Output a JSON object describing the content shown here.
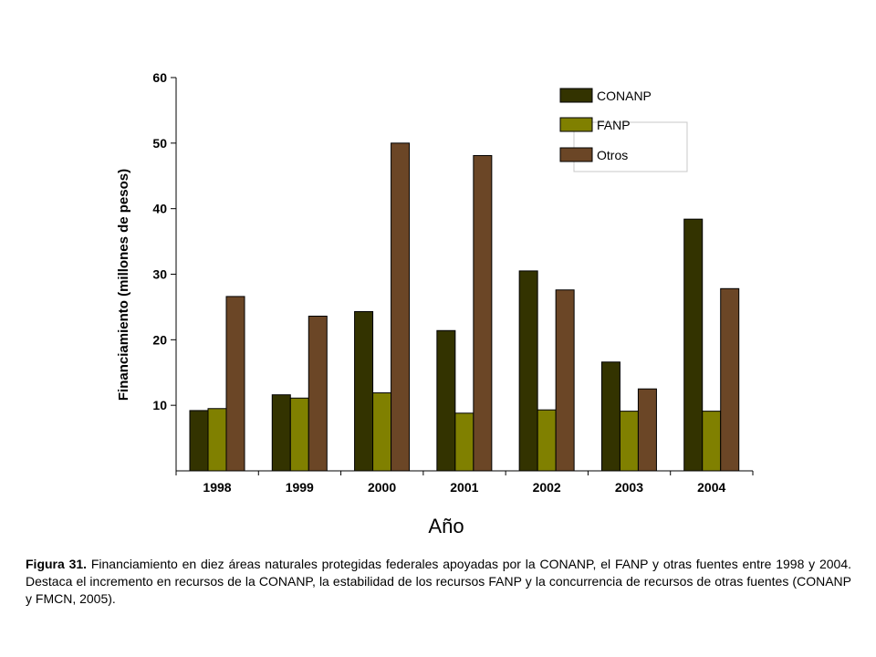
{
  "chart_data": {
    "type": "bar",
    "xlabel": "Año",
    "ylabel": "Financiamiento (millones de pesos)",
    "categories": [
      "1998",
      "1999",
      "2000",
      "2001",
      "2002",
      "2003",
      "2004"
    ],
    "ylim": [
      0,
      60
    ],
    "yticks": [
      10,
      20,
      30,
      40,
      50,
      60
    ],
    "grid": false,
    "legend_position": "top-right",
    "series": [
      {
        "name": "CONANP",
        "color": "#333300",
        "values": [
          9.2,
          11.6,
          24.3,
          21.4,
          30.5,
          16.6,
          38.4
        ]
      },
      {
        "name": "FANP",
        "color": "#808000",
        "values": [
          9.5,
          11.1,
          11.9,
          8.8,
          9.3,
          9.1,
          9.1
        ]
      },
      {
        "name": "Otros",
        "color": "#6b4626",
        "values": [
          26.6,
          23.6,
          50.0,
          48.1,
          27.6,
          12.5,
          27.8
        ]
      }
    ]
  },
  "caption": {
    "label": "Figura 31.",
    "text": " Financiamiento en diez áreas naturales protegidas federales apoyadas por la CONANP, el FANP y otras fuentes entre 1998 y 2004. Destaca el incremento en recursos de la CONANP, la estabilidad de los recursos FANP y la concurrencia de recursos de otras fuentes (CONANP y FMCN, 2005)."
  }
}
